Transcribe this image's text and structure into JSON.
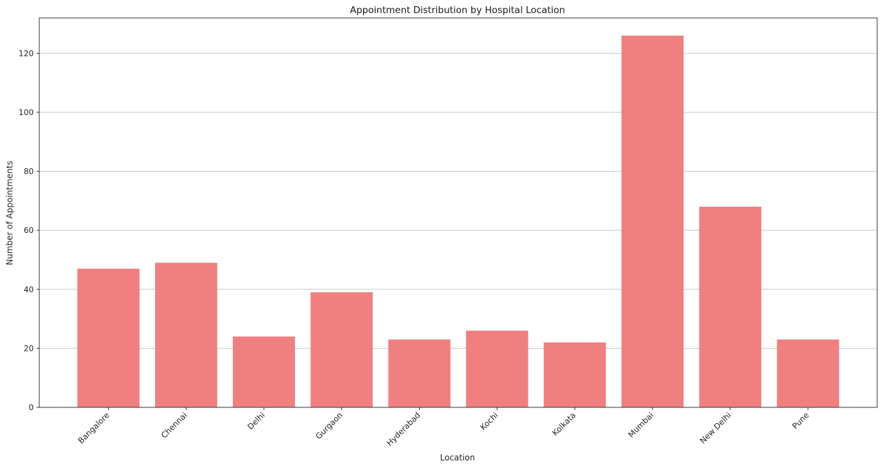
{
  "chart_data": {
    "type": "bar",
    "title": "Appointment Distribution by Hospital Location",
    "xlabel": "Location",
    "ylabel": "Number of Appointments",
    "categories": [
      "Bangalore",
      "Chennai",
      "Delhi",
      "Gurgaon",
      "Hyderabad",
      "Kochi",
      "Kolkata",
      "Mumbai",
      "New Delhi",
      "Pune"
    ],
    "values": [
      47,
      49,
      24,
      39,
      23,
      26,
      22,
      126,
      68,
      23
    ],
    "ylim": [
      0,
      132
    ],
    "yticks": [
      0,
      20,
      40,
      60,
      80,
      100,
      120
    ],
    "grid": "y-major",
    "legend": "none",
    "colors": {
      "bar": "#f08080",
      "grid": "#c8c8c8",
      "axis": "#333333",
      "text": "#262626"
    }
  }
}
